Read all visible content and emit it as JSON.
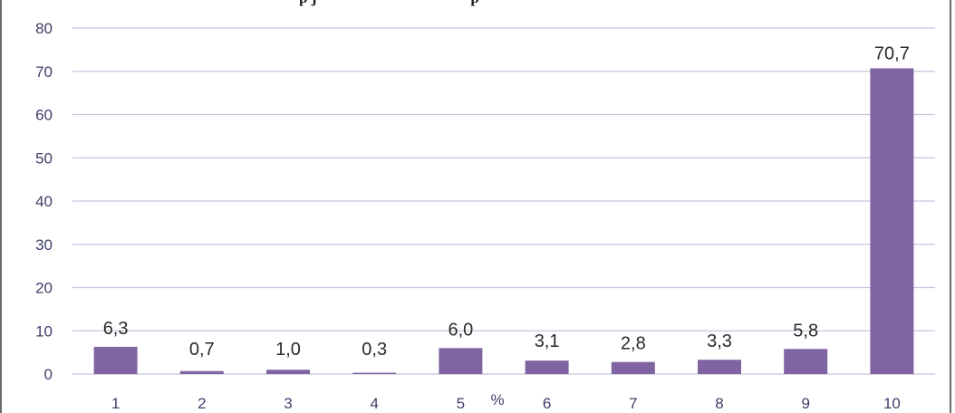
{
  "title_visible": {
    "left": "p    j",
    "right": "p"
  },
  "axis_unit_label": "%",
  "colors": {
    "bar": "#8064a2",
    "grid": "#c8c3dc",
    "axis_text": "#3f3f6a",
    "frame": "#6a6a6a"
  },
  "chart_data": {
    "type": "bar",
    "categories": [
      "1",
      "2",
      "3",
      "4",
      "5",
      "6",
      "7",
      "8",
      "9",
      "10"
    ],
    "values": [
      6.3,
      0.7,
      1.0,
      0.3,
      6.0,
      3.1,
      2.8,
      3.3,
      5.8,
      70.7
    ],
    "data_labels": [
      "6,3",
      "0,7",
      "1,0",
      "0,3",
      "6,0",
      "3,1",
      "2,8",
      "3,3",
      "5,8",
      "70,7"
    ],
    "yticks": [
      "0",
      "10",
      "20",
      "30",
      "40",
      "50",
      "60",
      "70",
      "80"
    ],
    "ylim": [
      0,
      80
    ],
    "grid": true,
    "legend": "none"
  }
}
